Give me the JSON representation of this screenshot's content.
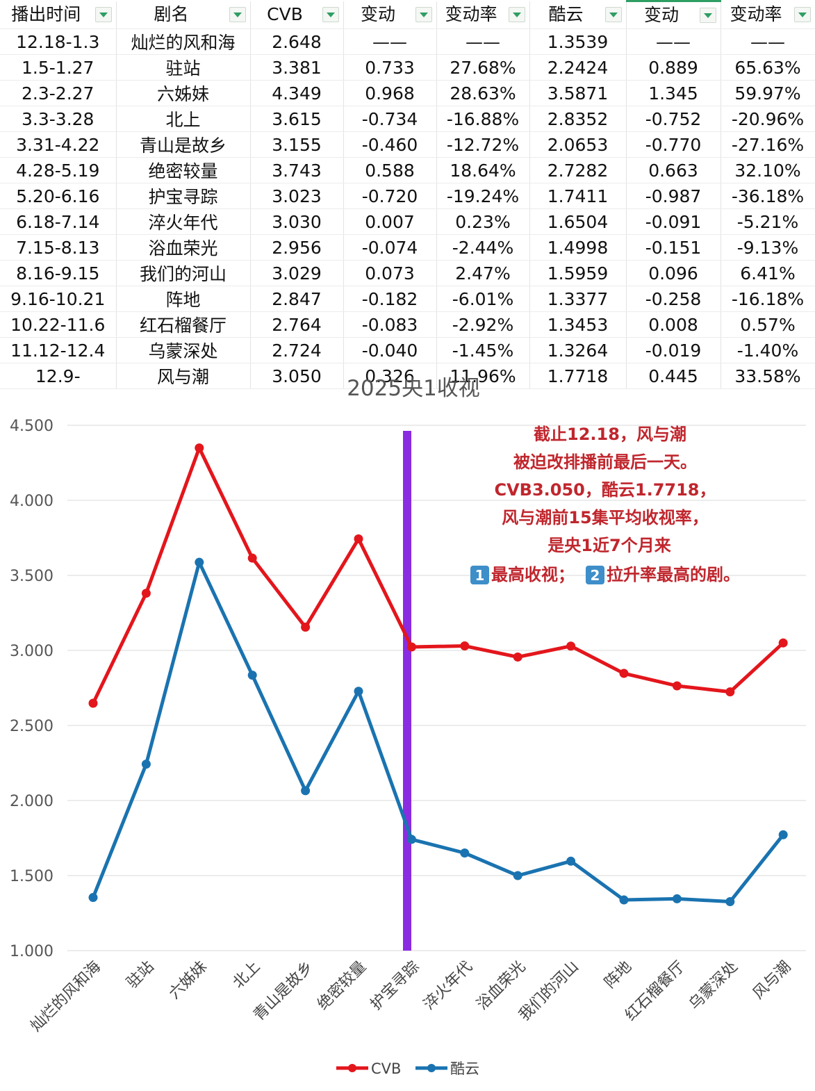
{
  "table": {
    "headers": [
      "播出时间",
      "剧名",
      "CVB",
      "变动",
      "变动率",
      "酷云",
      "变动",
      "变动率"
    ],
    "rows": [
      [
        "12.18-1.3",
        "灿烂的风和海",
        "2.648",
        "——",
        "——",
        "1.3539",
        "——",
        "——"
      ],
      [
        "1.5-1.27",
        "驻站",
        "3.381",
        "0.733",
        "27.68%",
        "2.2424",
        "0.889",
        "65.63%"
      ],
      [
        "2.3-2.27",
        "六姊妹",
        "4.349",
        "0.968",
        "28.63%",
        "3.5871",
        "1.345",
        "59.97%"
      ],
      [
        "3.3-3.28",
        "北上",
        "3.615",
        "-0.734",
        "-16.88%",
        "2.8352",
        "-0.752",
        "-20.96%"
      ],
      [
        "3.31-4.22",
        "青山是故乡",
        "3.155",
        "-0.460",
        "-12.72%",
        "2.0653",
        "-0.770",
        "-27.16%"
      ],
      [
        "4.28-5.19",
        "绝密较量",
        "3.743",
        "0.588",
        "18.64%",
        "2.7282",
        "0.663",
        "32.10%"
      ],
      [
        "5.20-6.16",
        "护宝寻踪",
        "3.023",
        "-0.720",
        "-19.24%",
        "1.7411",
        "-0.987",
        "-36.18%"
      ],
      [
        "6.18-7.14",
        "淬火年代",
        "3.030",
        "0.007",
        "0.23%",
        "1.6504",
        "-0.091",
        "-5.21%"
      ],
      [
        "7.15-8.13",
        "浴血荣光",
        "2.956",
        "-0.074",
        "-2.44%",
        "1.4998",
        "-0.151",
        "-9.13%"
      ],
      [
        "8.16-9.15",
        "我们的河山",
        "3.029",
        "0.073",
        "2.47%",
        "1.5959",
        "0.096",
        "6.41%"
      ],
      [
        "9.16-10.21",
        "阵地",
        "2.847",
        "-0.182",
        "-6.01%",
        "1.3377",
        "-0.258",
        "-16.18%"
      ],
      [
        "10.22-11.6",
        "红石榴餐厅",
        "2.764",
        "-0.083",
        "-2.92%",
        "1.3453",
        "0.008",
        "0.57%"
      ],
      [
        "11.12-12.4",
        "乌蒙深处",
        "2.724",
        "-0.040",
        "-1.45%",
        "1.3264",
        "-0.019",
        "-1.40%"
      ],
      [
        "12.9-",
        "风与潮",
        "3.050",
        "0.326",
        "11.96%",
        "1.7718",
        "0.445",
        "33.58%"
      ]
    ]
  },
  "chart_data": {
    "type": "line",
    "title": "2025央1收视",
    "categories": [
      "灿烂的风和海",
      "驻站",
      "六姊妹",
      "北上",
      "青山是故乡",
      "绝密较量",
      "护宝寻踪",
      "淬火年代",
      "浴血荣光",
      "我们的河山",
      "阵地",
      "红石榴餐厅",
      "乌蒙深处",
      "风与潮"
    ],
    "series": [
      {
        "name": "CVB",
        "color": "#e3161c",
        "values": [
          2.648,
          3.381,
          4.349,
          3.615,
          3.155,
          3.743,
          3.023,
          3.03,
          2.956,
          3.029,
          2.847,
          2.764,
          2.724,
          3.05
        ]
      },
      {
        "name": "酷云",
        "color": "#1a73b0",
        "values": [
          1.3539,
          2.2424,
          3.5871,
          2.8352,
          2.0653,
          2.7282,
          1.7411,
          1.6504,
          1.4998,
          1.5959,
          1.3377,
          1.3453,
          1.3264,
          1.7718
        ]
      }
    ],
    "y_ticks": [
      "1.000",
      "1.500",
      "2.000",
      "2.500",
      "3.000",
      "3.500",
      "4.000",
      "4.500"
    ],
    "ylim": [
      1.0,
      4.5
    ],
    "grid": true,
    "legend_position": "bottom",
    "marker_category": "护宝寻踪",
    "marker_color": "#8a2be2",
    "annotation": {
      "color": "#c0262d",
      "lines": [
        "截止12.18，风与潮",
        "被迫改排播前最后一天。",
        "CVB3.050，酷云1.7718，",
        "风与潮前15集平均收视率，",
        "是央1近7个月来"
      ],
      "last_line": {
        "badge1": "1",
        "text1": "最高收视；",
        "badge2": "2",
        "text2": "拉升率最高的剧。"
      }
    }
  }
}
